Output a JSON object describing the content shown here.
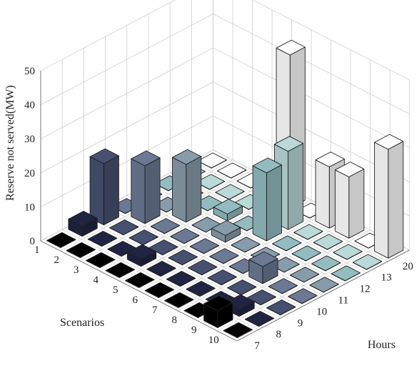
{
  "chart_data": {
    "type": "bar3d",
    "title": "",
    "zlabel": "Reserve not served(MW)",
    "xlabel": "Scenarios",
    "ylabel": "Hours",
    "zlim": [
      0,
      50
    ],
    "z_ticks": [
      "0",
      "10",
      "20",
      "30",
      "40",
      "50"
    ],
    "scenarios": [
      "1",
      "2",
      "3",
      "4",
      "5",
      "6",
      "7",
      "8",
      "9",
      "10"
    ],
    "hours": [
      "7",
      "8",
      "9",
      "10",
      "11",
      "12",
      "13",
      "20"
    ],
    "grid": true,
    "colormap": [
      "#000000",
      "#1b1e3c",
      "#3d4566",
      "#5d6a8a",
      "#7e8da2",
      "#8ea8b2",
      "#93c4c6",
      "#c0dcdc",
      "#ffffff"
    ],
    "values": [
      [
        0,
        3,
        18,
        0,
        0,
        0,
        0,
        0
      ],
      [
        0,
        0,
        0,
        17,
        0,
        0,
        0,
        0
      ],
      [
        0,
        0,
        0,
        0,
        17,
        0,
        0,
        0
      ],
      [
        0,
        2,
        0,
        0,
        0,
        2,
        0,
        0
      ],
      [
        0,
        0,
        0,
        0,
        2,
        0,
        0,
        45
      ],
      [
        0,
        0,
        0,
        0,
        0,
        20,
        23,
        0
      ],
      [
        0,
        0,
        0,
        0,
        0,
        0,
        0,
        18
      ],
      [
        0,
        0,
        0,
        5,
        0,
        0,
        0,
        18
      ],
      [
        5,
        2,
        0,
        0,
        0,
        0,
        0,
        0
      ],
      [
        0,
        0,
        0,
        0,
        0,
        0,
        0,
        32
      ]
    ]
  }
}
